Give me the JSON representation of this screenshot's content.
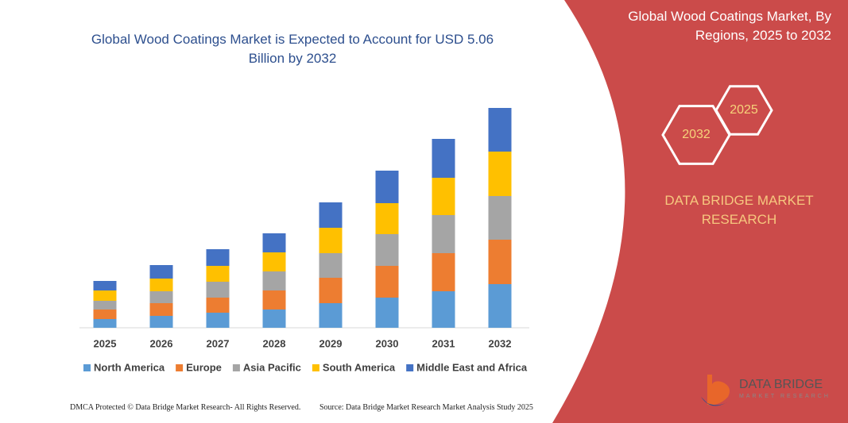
{
  "chart_data": {
    "type": "bar",
    "stacked": true,
    "title": "Global Wood Coatings Market is Expected to Account for USD 5.06 Billion by 2032",
    "categories": [
      "2025",
      "2026",
      "2027",
      "2028",
      "2029",
      "2030",
      "2031",
      "2032"
    ],
    "series": [
      {
        "name": "North America",
        "color": "#5b9bd5",
        "values": [
          11,
          15,
          19,
          23,
          31,
          38,
          46,
          55
        ]
      },
      {
        "name": "Europe",
        "color": "#ed7d31",
        "values": [
          12,
          16,
          19,
          24,
          32,
          40,
          48,
          56
        ]
      },
      {
        "name": "Asia Pacific",
        "color": "#a5a5a5",
        "values": [
          11,
          15,
          20,
          24,
          31,
          40,
          48,
          55
        ]
      },
      {
        "name": "South America",
        "color": "#ffc000",
        "values": [
          13,
          16,
          20,
          24,
          32,
          39,
          47,
          56
        ]
      },
      {
        "name": "Middle East and Africa",
        "color": "#4472c4",
        "values": [
          12,
          17,
          21,
          24,
          32,
          41,
          49,
          55
        ]
      }
    ],
    "ylim": [
      0,
      290
    ]
  },
  "panel": {
    "title": "Global Wood Coatings Market, By Regions, 2025 to 2032",
    "hexagons": [
      "2025",
      "2032"
    ],
    "brand": "DATA BRIDGE MARKET RESEARCH",
    "logo": "DATA BRIDGE",
    "logo_sub": "MARKET RESEARCH"
  },
  "footer": {
    "left": "DMCA Protected © Data Bridge Market Research-  All Rights Reserved.",
    "right": "Source: Data Bridge Market Research  Market Analysis Study 2025"
  }
}
